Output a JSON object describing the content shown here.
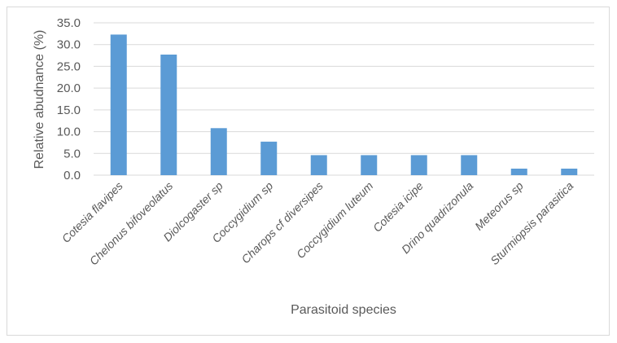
{
  "chart_data": {
    "type": "bar",
    "title": "",
    "xlabel": "Parasitoid species",
    "ylabel": "Relative abudnance (%)",
    "categories": [
      "Cotesia flavipes",
      "Chelonus bifoveolatus",
      "Diolcogaster sp",
      "Coccygidium sp",
      "Charops cf diversipes",
      "Coccygidium luteum",
      "Cotesia icipe",
      "Drino quadrizonula",
      "Meteorus sp",
      "Sturmiopsis parasitica"
    ],
    "values": [
      32.3,
      27.7,
      10.8,
      7.7,
      4.6,
      4.6,
      4.6,
      4.6,
      1.5,
      1.5
    ],
    "ylim": [
      0,
      35
    ],
    "yticks": [
      "0.0",
      "5.0",
      "10.0",
      "15.0",
      "20.0",
      "25.0",
      "30.0",
      "35.0"
    ],
    "grid": true,
    "bar_color": "#5b9bd5"
  }
}
